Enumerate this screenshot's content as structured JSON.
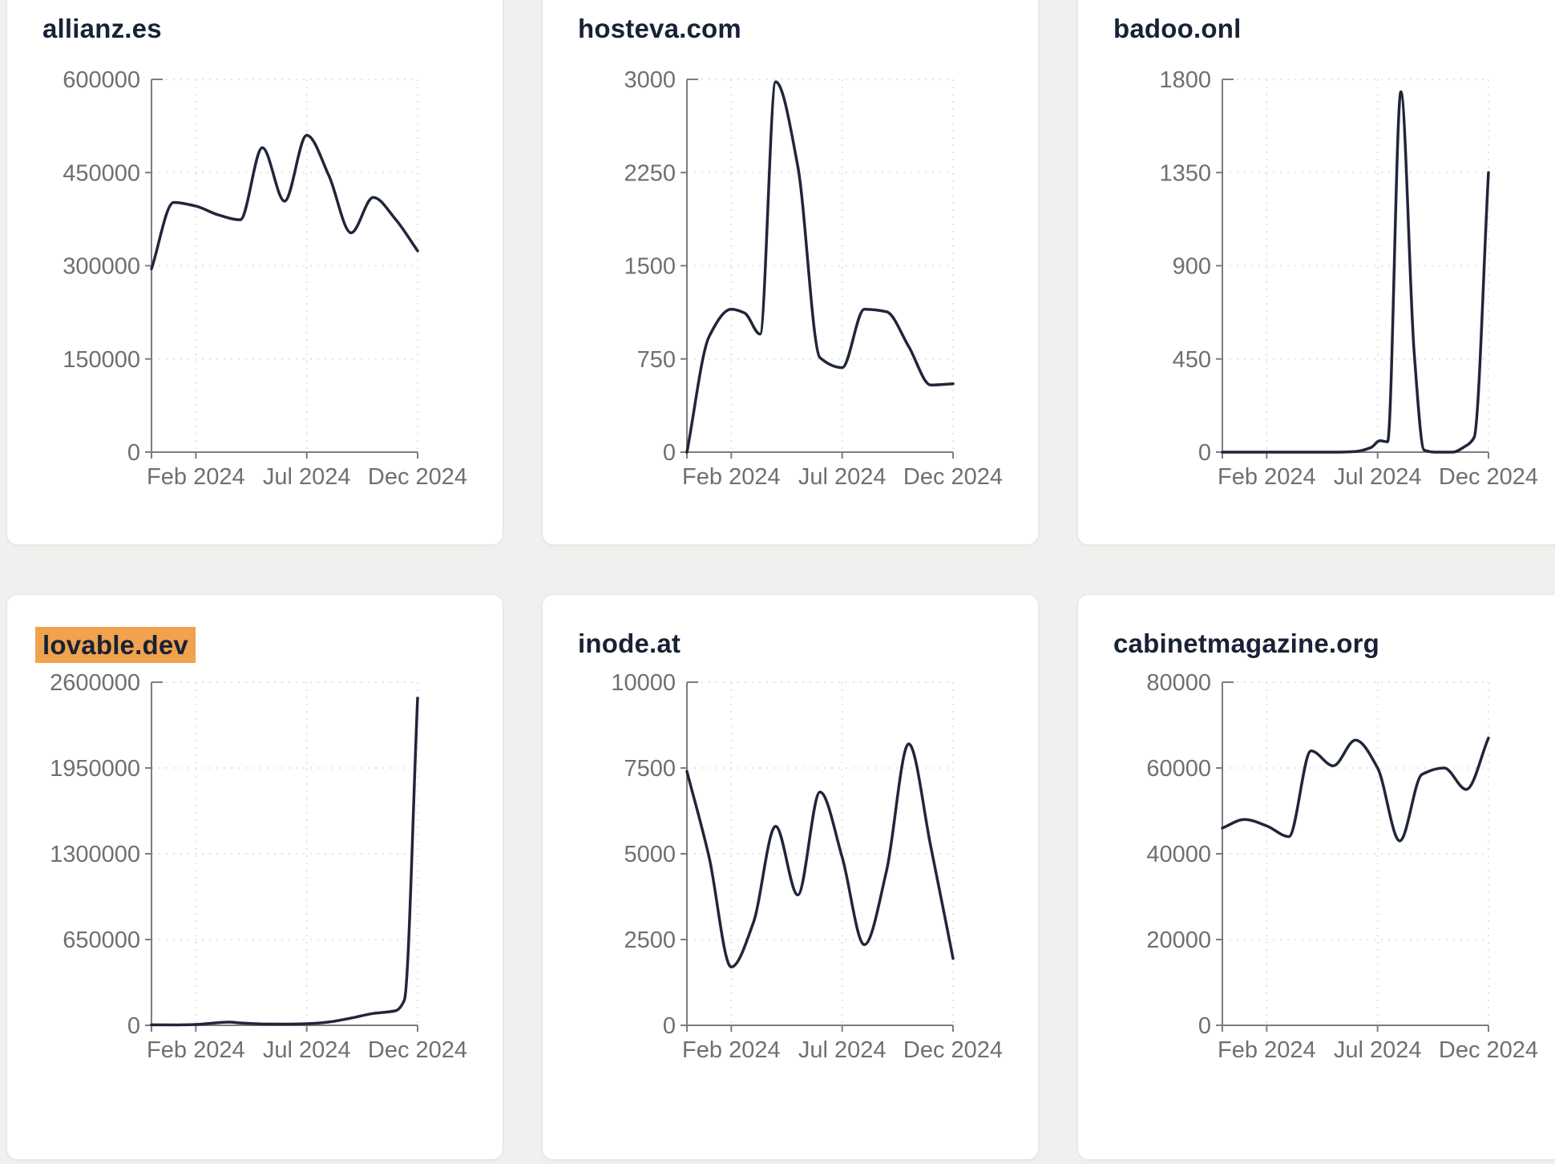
{
  "page": {
    "background_color": "#f1f0ee",
    "card_background": "#ffffff",
    "card_border_color": "#e8e6e3",
    "title_color": "#182136",
    "highlight_color": "#f0a24e",
    "line_color": "#20263a",
    "axis_line_color": "#7d7d7d",
    "gridline_color": "#e4e3e1",
    "tick_label_color": "#6f6f6f"
  },
  "chart_data": [
    {
      "type": "line",
      "title": "allianz.es",
      "highlighted": false,
      "x_domain": [
        "Dec 2023",
        "Dec 2024"
      ],
      "x_tick_months": [
        2,
        7,
        12
      ],
      "x_tick_labels": [
        "Feb 2024",
        "Jul 2024",
        "Dec 2024"
      ],
      "ylim": [
        0,
        600000
      ],
      "y_ticks": [
        0,
        150000,
        300000,
        450000,
        600000
      ],
      "grid": true,
      "legend": "none",
      "points": [
        [
          0,
          295000
        ],
        [
          1,
          402000
        ],
        [
          2,
          396000
        ],
        [
          3,
          382000
        ],
        [
          4,
          374000
        ],
        [
          5,
          490000
        ],
        [
          6,
          404000
        ],
        [
          7,
          510000
        ],
        [
          8,
          445000
        ],
        [
          9,
          353000
        ],
        [
          10,
          410000
        ],
        [
          11,
          375000
        ],
        [
          12,
          324000
        ]
      ]
    },
    {
      "type": "line",
      "title": "hosteva.com",
      "highlighted": false,
      "x_domain": [
        "Dec 2023",
        "Dec 2024"
      ],
      "x_tick_months": [
        2,
        7,
        12
      ],
      "x_tick_labels": [
        "Feb 2024",
        "Jul 2024",
        "Dec 2024"
      ],
      "ylim": [
        0,
        3000
      ],
      "y_ticks": [
        0,
        750,
        1500,
        2250,
        3000
      ],
      "grid": true,
      "legend": "none",
      "points": [
        [
          0,
          0
        ],
        [
          1,
          930
        ],
        [
          2,
          1150
        ],
        [
          2.6,
          1120
        ],
        [
          3.3,
          950
        ],
        [
          4,
          2980
        ],
        [
          5,
          2300
        ],
        [
          6,
          760
        ],
        [
          7,
          680
        ],
        [
          8,
          1150
        ],
        [
          9,
          1130
        ],
        [
          10,
          850
        ],
        [
          11,
          540
        ],
        [
          12,
          550
        ]
      ]
    },
    {
      "type": "line",
      "title": "badoo.onl",
      "highlighted": false,
      "x_domain": [
        "Dec 2023",
        "Dec 2024"
      ],
      "x_tick_months": [
        2,
        7,
        12
      ],
      "x_tick_labels": [
        "Feb 2024",
        "Jul 2024",
        "Dec 2024"
      ],
      "ylim": [
        0,
        1800
      ],
      "y_ticks": [
        0,
        450,
        900,
        1350,
        1800
      ],
      "grid": true,
      "legend": "none",
      "points": [
        [
          0,
          0
        ],
        [
          1,
          0
        ],
        [
          2,
          0
        ],
        [
          3,
          0
        ],
        [
          4,
          0
        ],
        [
          5,
          0
        ],
        [
          6,
          3
        ],
        [
          6.7,
          22
        ],
        [
          7.1,
          55
        ],
        [
          7.45,
          50
        ],
        [
          8.05,
          1740
        ],
        [
          8.65,
          480
        ],
        [
          9.1,
          10
        ],
        [
          9.6,
          0
        ],
        [
          10.4,
          0
        ],
        [
          10.9,
          25
        ],
        [
          11.35,
          70
        ],
        [
          12,
          1350
        ]
      ]
    },
    {
      "type": "line",
      "title": "lovable.dev",
      "highlighted": true,
      "x_domain": [
        "Dec 2023",
        "Dec 2024"
      ],
      "x_tick_months": [
        2,
        7,
        12
      ],
      "x_tick_labels": [
        "Feb 2024",
        "Jul 2024",
        "Dec 2024"
      ],
      "ylim": [
        0,
        2600000
      ],
      "y_ticks": [
        0,
        650000,
        1300000,
        1950000,
        2600000
      ],
      "grid": true,
      "legend": "none",
      "points": [
        [
          0,
          4000
        ],
        [
          1,
          3000
        ],
        [
          2,
          6000
        ],
        [
          3,
          20000
        ],
        [
          3.5,
          24000
        ],
        [
          4,
          18000
        ],
        [
          5,
          10000
        ],
        [
          6,
          9000
        ],
        [
          7,
          12000
        ],
        [
          8,
          25000
        ],
        [
          9,
          55000
        ],
        [
          10,
          90000
        ],
        [
          11,
          110000
        ],
        [
          11.4,
          190000
        ],
        [
          12,
          2480000
        ]
      ]
    },
    {
      "type": "line",
      "title": "inode.at",
      "highlighted": false,
      "x_domain": [
        "Dec 2023",
        "Dec 2024"
      ],
      "x_tick_months": [
        2,
        7,
        12
      ],
      "x_tick_labels": [
        "Feb 2024",
        "Jul 2024",
        "Dec 2024"
      ],
      "ylim": [
        0,
        10000
      ],
      "y_ticks": [
        0,
        2500,
        5000,
        7500,
        10000
      ],
      "grid": true,
      "legend": "none",
      "points": [
        [
          0,
          7400
        ],
        [
          1,
          4900
        ],
        [
          2,
          1700
        ],
        [
          3,
          3000
        ],
        [
          4,
          5800
        ],
        [
          5,
          3800
        ],
        [
          6,
          6800
        ],
        [
          7,
          4900
        ],
        [
          8,
          2350
        ],
        [
          9,
          4500
        ],
        [
          10,
          8200
        ],
        [
          11,
          5200
        ],
        [
          12,
          1950
        ]
      ]
    },
    {
      "type": "line",
      "title": "cabinetmagazine.org",
      "highlighted": false,
      "x_domain": [
        "Dec 2023",
        "Dec 2024"
      ],
      "x_tick_months": [
        2,
        7,
        12
      ],
      "x_tick_labels": [
        "Feb 2024",
        "Jul 2024",
        "Dec 2024"
      ],
      "ylim": [
        0,
        80000
      ],
      "y_ticks": [
        0,
        20000,
        40000,
        60000,
        80000
      ],
      "grid": true,
      "legend": "none",
      "points": [
        [
          0,
          46000
        ],
        [
          1,
          48000
        ],
        [
          2,
          46500
        ],
        [
          3,
          44000
        ],
        [
          4,
          64000
        ],
        [
          5,
          60500
        ],
        [
          6,
          66500
        ],
        [
          7,
          60000
        ],
        [
          8,
          43000
        ],
        [
          9,
          58500
        ],
        [
          10,
          60000
        ],
        [
          11,
          55000
        ],
        [
          12,
          67000
        ]
      ]
    }
  ]
}
